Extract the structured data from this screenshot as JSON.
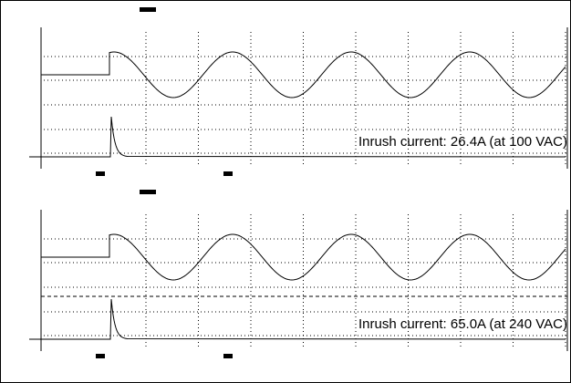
{
  "panels": [
    {
      "caption": "Inrush current: 26.4A (at 100 VAC)"
    },
    {
      "caption": "Inrush current: 65.0A (at 240 VAC)"
    }
  ]
}
